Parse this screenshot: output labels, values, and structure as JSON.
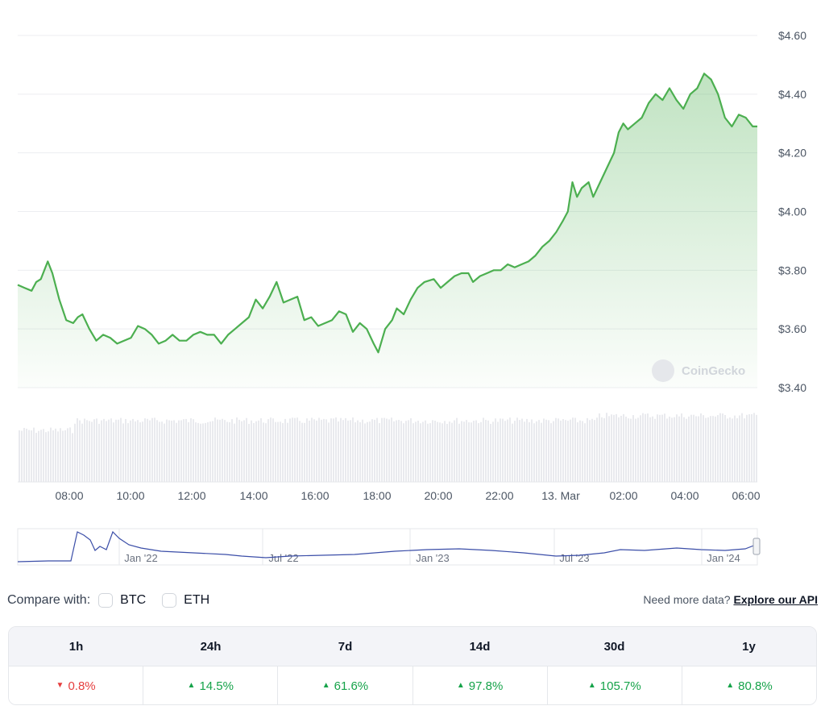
{
  "chart_data": {
    "type": "area",
    "title": "",
    "y_axis": {
      "ticks": [
        "$4.60",
        "$4.40",
        "$4.20",
        "$4.00",
        "$3.80",
        "$3.60",
        "$3.40"
      ],
      "min": 3.4,
      "max": 4.6
    },
    "x_axis": {
      "ticks": [
        "08:00",
        "10:00",
        "12:00",
        "14:00",
        "16:00",
        "18:00",
        "20:00",
        "22:00",
        "13. Mar",
        "02:00",
        "04:00",
        "06:00"
      ]
    },
    "grid": true,
    "series": [
      {
        "color": "#4caf50",
        "points": [
          [
            0,
            3.75
          ],
          [
            0.15,
            3.74
          ],
          [
            0.3,
            3.73
          ],
          [
            0.4,
            3.76
          ],
          [
            0.5,
            3.77
          ],
          [
            0.65,
            3.83
          ],
          [
            0.75,
            3.79
          ],
          [
            0.9,
            3.7
          ],
          [
            1.05,
            3.63
          ],
          [
            1.2,
            3.62
          ],
          [
            1.3,
            3.64
          ],
          [
            1.4,
            3.65
          ],
          [
            1.55,
            3.6
          ],
          [
            1.7,
            3.56
          ],
          [
            1.85,
            3.58
          ],
          [
            2.0,
            3.57
          ],
          [
            2.15,
            3.55
          ],
          [
            2.3,
            3.56
          ],
          [
            2.45,
            3.57
          ],
          [
            2.6,
            3.61
          ],
          [
            2.75,
            3.6
          ],
          [
            2.9,
            3.58
          ],
          [
            3.05,
            3.55
          ],
          [
            3.2,
            3.56
          ],
          [
            3.35,
            3.58
          ],
          [
            3.5,
            3.56
          ],
          [
            3.65,
            3.56
          ],
          [
            3.8,
            3.58
          ],
          [
            3.95,
            3.59
          ],
          [
            4.1,
            3.58
          ],
          [
            4.25,
            3.58
          ],
          [
            4.4,
            3.55
          ],
          [
            4.55,
            3.58
          ],
          [
            4.7,
            3.6
          ],
          [
            4.85,
            3.62
          ],
          [
            5.0,
            3.64
          ],
          [
            5.15,
            3.7
          ],
          [
            5.3,
            3.67
          ],
          [
            5.45,
            3.71
          ],
          [
            5.6,
            3.76
          ],
          [
            5.75,
            3.69
          ],
          [
            5.9,
            3.7
          ],
          [
            6.05,
            3.71
          ],
          [
            6.2,
            3.63
          ],
          [
            6.35,
            3.64
          ],
          [
            6.5,
            3.61
          ],
          [
            6.65,
            3.62
          ],
          [
            6.8,
            3.63
          ],
          [
            6.95,
            3.66
          ],
          [
            7.1,
            3.65
          ],
          [
            7.25,
            3.59
          ],
          [
            7.4,
            3.62
          ],
          [
            7.55,
            3.6
          ],
          [
            7.7,
            3.55
          ],
          [
            7.8,
            3.52
          ],
          [
            7.95,
            3.6
          ],
          [
            8.1,
            3.63
          ],
          [
            8.2,
            3.67
          ],
          [
            8.35,
            3.65
          ],
          [
            8.5,
            3.7
          ],
          [
            8.65,
            3.74
          ],
          [
            8.8,
            3.76
          ],
          [
            9.0,
            3.77
          ],
          [
            9.15,
            3.74
          ],
          [
            9.3,
            3.76
          ],
          [
            9.45,
            3.78
          ],
          [
            9.6,
            3.79
          ],
          [
            9.75,
            3.79
          ],
          [
            9.85,
            3.76
          ],
          [
            10.0,
            3.78
          ],
          [
            10.15,
            3.79
          ],
          [
            10.3,
            3.8
          ],
          [
            10.45,
            3.8
          ],
          [
            10.6,
            3.82
          ],
          [
            10.75,
            3.81
          ],
          [
            10.9,
            3.82
          ],
          [
            11.05,
            3.83
          ],
          [
            11.2,
            3.85
          ],
          [
            11.35,
            3.88
          ],
          [
            11.5,
            3.9
          ],
          [
            11.65,
            3.93
          ],
          [
            11.8,
            3.97
          ],
          [
            11.9,
            4.0
          ],
          [
            12.0,
            4.1
          ],
          [
            12.1,
            4.05
          ],
          [
            12.2,
            4.08
          ],
          [
            12.35,
            4.1
          ],
          [
            12.45,
            4.05
          ],
          [
            12.6,
            4.1
          ],
          [
            12.75,
            4.15
          ],
          [
            12.9,
            4.2
          ],
          [
            13.0,
            4.27
          ],
          [
            13.1,
            4.3
          ],
          [
            13.2,
            4.28
          ],
          [
            13.35,
            4.3
          ],
          [
            13.5,
            4.32
          ],
          [
            13.65,
            4.37
          ],
          [
            13.8,
            4.4
          ],
          [
            13.95,
            4.38
          ],
          [
            14.1,
            4.42
          ],
          [
            14.25,
            4.38
          ],
          [
            14.4,
            4.35
          ],
          [
            14.55,
            4.4
          ],
          [
            14.7,
            4.42
          ],
          [
            14.85,
            4.47
          ],
          [
            15.0,
            4.45
          ],
          [
            15.15,
            4.4
          ],
          [
            15.3,
            4.32
          ],
          [
            15.45,
            4.29
          ],
          [
            15.6,
            4.33
          ],
          [
            15.75,
            4.32
          ],
          [
            15.9,
            4.29
          ],
          [
            16.0,
            4.29
          ]
        ]
      }
    ]
  },
  "navigator": {
    "ticks": [
      "Jan '22",
      "Jul '22",
      "Jan '23",
      "Jul '23",
      "Jan '24"
    ]
  },
  "watermark": "CoinGecko",
  "compare": {
    "label": "Compare with:",
    "options": [
      "BTC",
      "ETH"
    ],
    "note": "Need more data?",
    "link": "Explore our API"
  },
  "performance": {
    "headers": [
      "1h",
      "24h",
      "7d",
      "14d",
      "30d",
      "1y"
    ],
    "values": [
      {
        "text": "0.8%",
        "dir": "down"
      },
      {
        "text": "14.5%",
        "dir": "up"
      },
      {
        "text": "61.6%",
        "dir": "up"
      },
      {
        "text": "97.8%",
        "dir": "up"
      },
      {
        "text": "105.7%",
        "dir": "up"
      },
      {
        "text": "80.8%",
        "dir": "up"
      }
    ]
  },
  "colors": {
    "up": "#16a34a",
    "down": "#e53e3e",
    "line": "#4caf50",
    "navigator_line": "#3b4ea8"
  }
}
